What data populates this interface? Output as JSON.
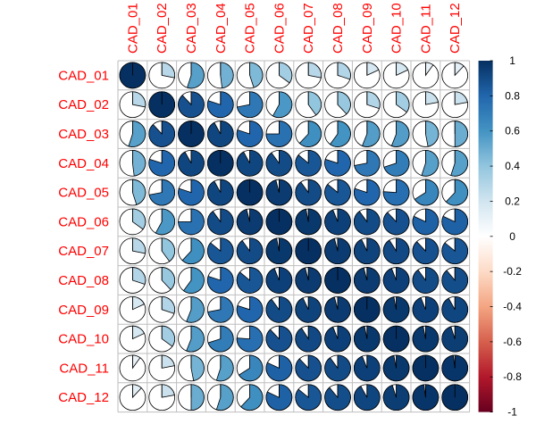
{
  "chart_data": {
    "type": "heatmap",
    "subtype": "correlation-pie",
    "variables": [
      "CAD_01",
      "CAD_02",
      "CAD_03",
      "CAD_04",
      "CAD_05",
      "CAD_06",
      "CAD_07",
      "CAD_08",
      "CAD_09",
      "CAD_10",
      "CAD_11",
      "CAD_12"
    ],
    "matrix": [
      [
        1.0,
        0.28,
        0.55,
        0.48,
        0.45,
        0.35,
        0.28,
        0.3,
        0.18,
        0.18,
        0.1,
        0.12
      ],
      [
        0.28,
        1.0,
        0.88,
        0.8,
        0.72,
        0.58,
        0.4,
        0.38,
        0.3,
        0.35,
        0.22,
        0.22
      ],
      [
        0.55,
        0.88,
        1.0,
        0.92,
        0.8,
        0.75,
        0.62,
        0.6,
        0.56,
        0.56,
        0.47,
        0.5
      ],
      [
        0.48,
        0.8,
        0.92,
        1.0,
        0.92,
        0.9,
        0.86,
        0.8,
        0.72,
        0.7,
        0.55,
        0.55
      ],
      [
        0.45,
        0.72,
        0.8,
        0.92,
        1.0,
        0.96,
        0.9,
        0.86,
        0.8,
        0.76,
        0.66,
        0.62
      ],
      [
        0.35,
        0.58,
        0.75,
        0.9,
        0.96,
        1.0,
        0.97,
        0.94,
        0.9,
        0.88,
        0.82,
        0.82
      ],
      [
        0.28,
        0.4,
        0.62,
        0.86,
        0.9,
        0.97,
        1.0,
        0.96,
        0.93,
        0.91,
        0.88,
        0.86
      ],
      [
        0.3,
        0.38,
        0.6,
        0.8,
        0.86,
        0.94,
        0.96,
        1.0,
        0.96,
        0.94,
        0.9,
        0.89
      ],
      [
        0.18,
        0.3,
        0.56,
        0.72,
        0.8,
        0.9,
        0.93,
        0.96,
        1.0,
        0.97,
        0.94,
        0.92
      ],
      [
        0.18,
        0.35,
        0.56,
        0.7,
        0.76,
        0.88,
        0.91,
        0.94,
        0.97,
        1.0,
        0.97,
        0.95
      ],
      [
        0.1,
        0.22,
        0.47,
        0.55,
        0.66,
        0.82,
        0.88,
        0.9,
        0.94,
        0.97,
        1.0,
        0.98
      ],
      [
        0.12,
        0.22,
        0.5,
        0.55,
        0.62,
        0.82,
        0.86,
        0.89,
        0.92,
        0.95,
        0.98,
        1.0
      ]
    ],
    "colorbar": {
      "range": [
        -1,
        1
      ],
      "ticks": [
        "1",
        "0.8",
        "0.6",
        "0.4",
        "0.2",
        "0",
        "-0.2",
        "-0.4",
        "-0.6",
        "-0.8",
        "-1"
      ],
      "colors": [
        "#053061",
        "#2166AC",
        "#4393C3",
        "#92C5DE",
        "#D1E5F0",
        "#FFFFFF",
        "#FDDBC7",
        "#F4A582",
        "#D6604D",
        "#B2182B",
        "#67001F"
      ]
    },
    "label_color": "#FF0000",
    "grid_color": "#BEBEBE",
    "title": "",
    "xlabel": "",
    "ylabel": ""
  }
}
